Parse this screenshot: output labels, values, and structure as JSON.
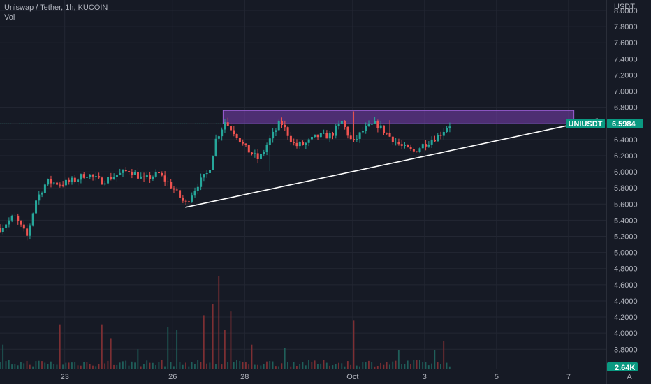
{
  "legend": {
    "symbol_line": "Uniswap / Tether, 1h, KUCOIN",
    "indicator": "Vol"
  },
  "colors": {
    "background": "#161a25",
    "grid": "#232733",
    "up": "#26a69a",
    "down": "#ef5350",
    "vol_up": "#1f5f5a",
    "vol_down": "#7d2f33",
    "price_tag": "#0a9981",
    "zone_fill": "#7b3fb3",
    "trendline": "#ffffff"
  },
  "chart_data": {
    "type": "candlestick",
    "symbol": "UNIUSDT",
    "interval": "1h",
    "exchange": "KUCOIN",
    "y_axis": {
      "unit_label": "USDT",
      "range": [
        3.56,
        8.13
      ],
      "ticks": [
        "8.0000",
        "7.8000",
        "7.6000",
        "7.4000",
        "7.2000",
        "7.0000",
        "6.8000",
        "6.6000",
        "6.4000",
        "6.2000",
        "6.0000",
        "5.8000",
        "5.6000",
        "5.4000",
        "5.2000",
        "5.0000",
        "4.8000",
        "4.6000",
        "4.4000",
        "4.2000",
        "4.0000",
        "3.8000"
      ]
    },
    "x_axis": {
      "day_range": [
        21.2,
        38.05
      ],
      "ticks": [
        {
          "label": "23",
          "day": 23
        },
        {
          "label": "26",
          "day": 26
        },
        {
          "label": "28",
          "day": 28
        },
        {
          "label": "Oct",
          "day": 31
        },
        {
          "label": "3",
          "day": 33
        },
        {
          "label": "5",
          "day": 35
        },
        {
          "label": "7",
          "day": 37
        }
      ]
    },
    "price_path": [
      [
        21.2,
        5.3
      ],
      [
        21.6,
        5.45
      ],
      [
        21.95,
        5.2
      ],
      [
        22.2,
        5.65
      ],
      [
        22.5,
        5.88
      ],
      [
        22.9,
        5.85
      ],
      [
        23.3,
        5.9
      ],
      [
        23.6,
        5.98
      ],
      [
        24.0,
        5.88
      ],
      [
        24.4,
        5.95
      ],
      [
        24.8,
        6.02
      ],
      [
        25.2,
        5.9
      ],
      [
        25.6,
        5.98
      ],
      [
        26.0,
        5.8
      ],
      [
        26.35,
        5.6
      ],
      [
        26.7,
        5.85
      ],
      [
        27.0,
        6.0
      ],
      [
        27.2,
        6.4
      ],
      [
        27.45,
        6.62
      ],
      [
        27.8,
        6.45
      ],
      [
        28.0,
        6.3
      ],
      [
        28.4,
        6.15
      ],
      [
        28.7,
        6.4
      ],
      [
        29.0,
        6.62
      ],
      [
        29.4,
        6.32
      ],
      [
        29.7,
        6.35
      ],
      [
        30.0,
        6.44
      ],
      [
        30.4,
        6.45
      ],
      [
        30.7,
        6.62
      ],
      [
        31.0,
        6.35
      ],
      [
        31.3,
        6.52
      ],
      [
        31.65,
        6.6
      ],
      [
        32.0,
        6.45
      ],
      [
        32.4,
        6.3
      ],
      [
        32.7,
        6.25
      ],
      [
        33.0,
        6.35
      ],
      [
        33.4,
        6.45
      ],
      [
        33.6,
        6.55
      ],
      [
        33.75,
        6.6
      ]
    ],
    "price_noise": 0.055,
    "spikes": [
      {
        "day": 31.0,
        "high": 6.75
      },
      {
        "day": 32.0,
        "high": 6.64
      },
      {
        "day": 27.5,
        "high": 6.67
      },
      {
        "day": 21.95,
        "low": 5.15
      },
      {
        "day": 28.7,
        "low": 6.01
      }
    ],
    "last_price": {
      "label": "UNIUSDT",
      "value": 6.5984,
      "value_label": "6.5984"
    },
    "volume": {
      "last_label": "2.64K",
      "max_axis_value": 100,
      "base_level": 6,
      "spikes": [
        {
          "day": 27.3,
          "value": 100
        },
        {
          "day": 27.15,
          "value": 70
        },
        {
          "day": 27.6,
          "value": 62
        },
        {
          "day": 31.05,
          "value": 52
        },
        {
          "day": 26.9,
          "value": 58
        },
        {
          "day": 24.0,
          "value": 48
        },
        {
          "day": 24.3,
          "value": 33
        },
        {
          "day": 22.9,
          "value": 48
        },
        {
          "day": 25.9,
          "value": 45
        },
        {
          "day": 26.1,
          "value": 42
        },
        {
          "day": 27.45,
          "value": 42
        },
        {
          "day": 28.2,
          "value": 26
        },
        {
          "day": 29.1,
          "value": 22
        },
        {
          "day": 32.3,
          "value": 20
        },
        {
          "day": 33.5,
          "value": 30
        },
        {
          "day": 33.3,
          "value": 20
        },
        {
          "day": 21.3,
          "value": 26
        },
        {
          "day": 25.0,
          "value": 21
        }
      ]
    },
    "drawings": {
      "resistance_zone": {
        "day_start": 27.4,
        "day_end": 37.15,
        "price_low": 6.595,
        "price_high": 6.76
      },
      "trendline": {
        "start": {
          "day": 26.35,
          "price": 5.56
        },
        "end": {
          "day": 37.15,
          "price": 6.59
        }
      },
      "dotted_price_line": {
        "price": 6.595
      }
    },
    "grid": true
  },
  "scale_markers": {
    "auto": "A"
  }
}
